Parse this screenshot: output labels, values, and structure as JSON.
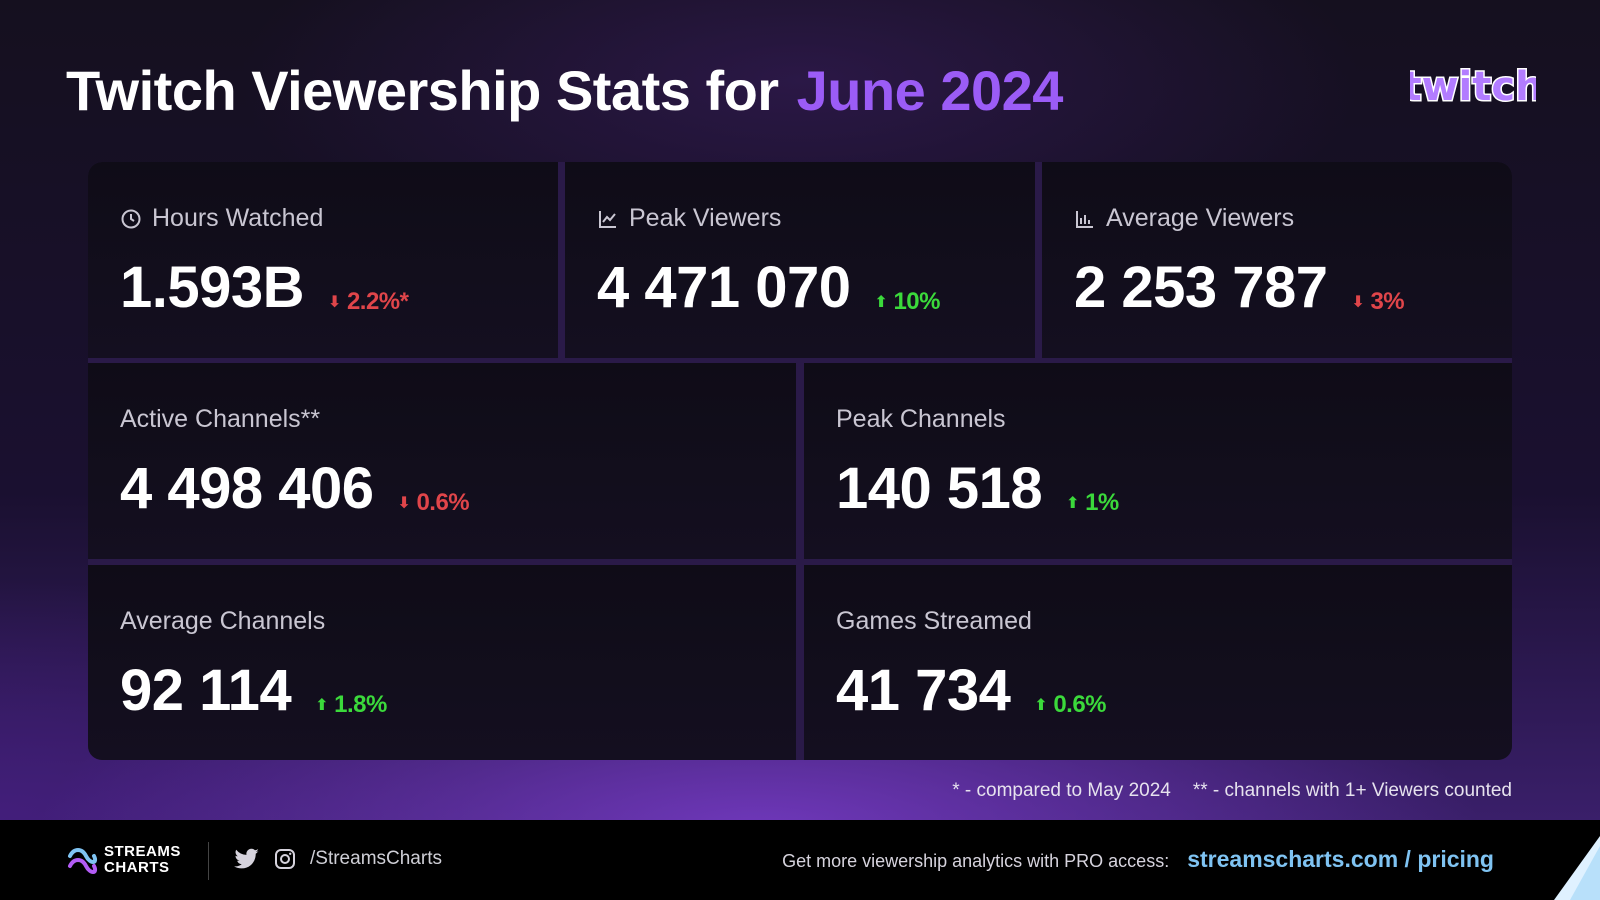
{
  "title": {
    "main": "Twitch Viewership Stats for",
    "period": "June 2024"
  },
  "brand": {
    "logo_text": "twitch",
    "accent_color": "#9b5cf6"
  },
  "cards": {
    "hours_watched": {
      "label": "Hours Watched",
      "value": "1.593B",
      "change": "2.2%*",
      "direction": "down",
      "icon": "clock-icon"
    },
    "peak_viewers": {
      "label": "Peak Viewers",
      "value": "4 471 070",
      "change": "10%",
      "direction": "up",
      "icon": "chart-icon"
    },
    "average_viewers": {
      "label": "Average Viewers",
      "value": "2 253 787",
      "change": "3%",
      "direction": "down",
      "icon": "bar-chart-icon"
    },
    "active_channels": {
      "label": "Active Channels**",
      "value": "4 498 406",
      "change": "0.6%",
      "direction": "down"
    },
    "peak_channels": {
      "label": "Peak Channels",
      "value": "140 518",
      "change": "1%",
      "direction": "up"
    },
    "average_channels": {
      "label": "Average Channels",
      "value": "92 114",
      "change": "1.8%",
      "direction": "up"
    },
    "games_streamed": {
      "label": "Games Streamed",
      "value": "41 734",
      "change": "0.6%",
      "direction": "up"
    }
  },
  "footnotes": {
    "note1": "* - compared to May 2024",
    "note2": "** - channels with 1+ Viewers counted"
  },
  "footer": {
    "logo_line1": "STREAMS",
    "logo_line2": "CHARTS",
    "handle": "/StreamsCharts",
    "promo_text": "Get more viewership analytics with PRO access:",
    "promo_link": "streamscharts.com / pricing"
  },
  "colors": {
    "down": "#e0454a",
    "up": "#3bd93b",
    "link": "#7fc3f2"
  }
}
